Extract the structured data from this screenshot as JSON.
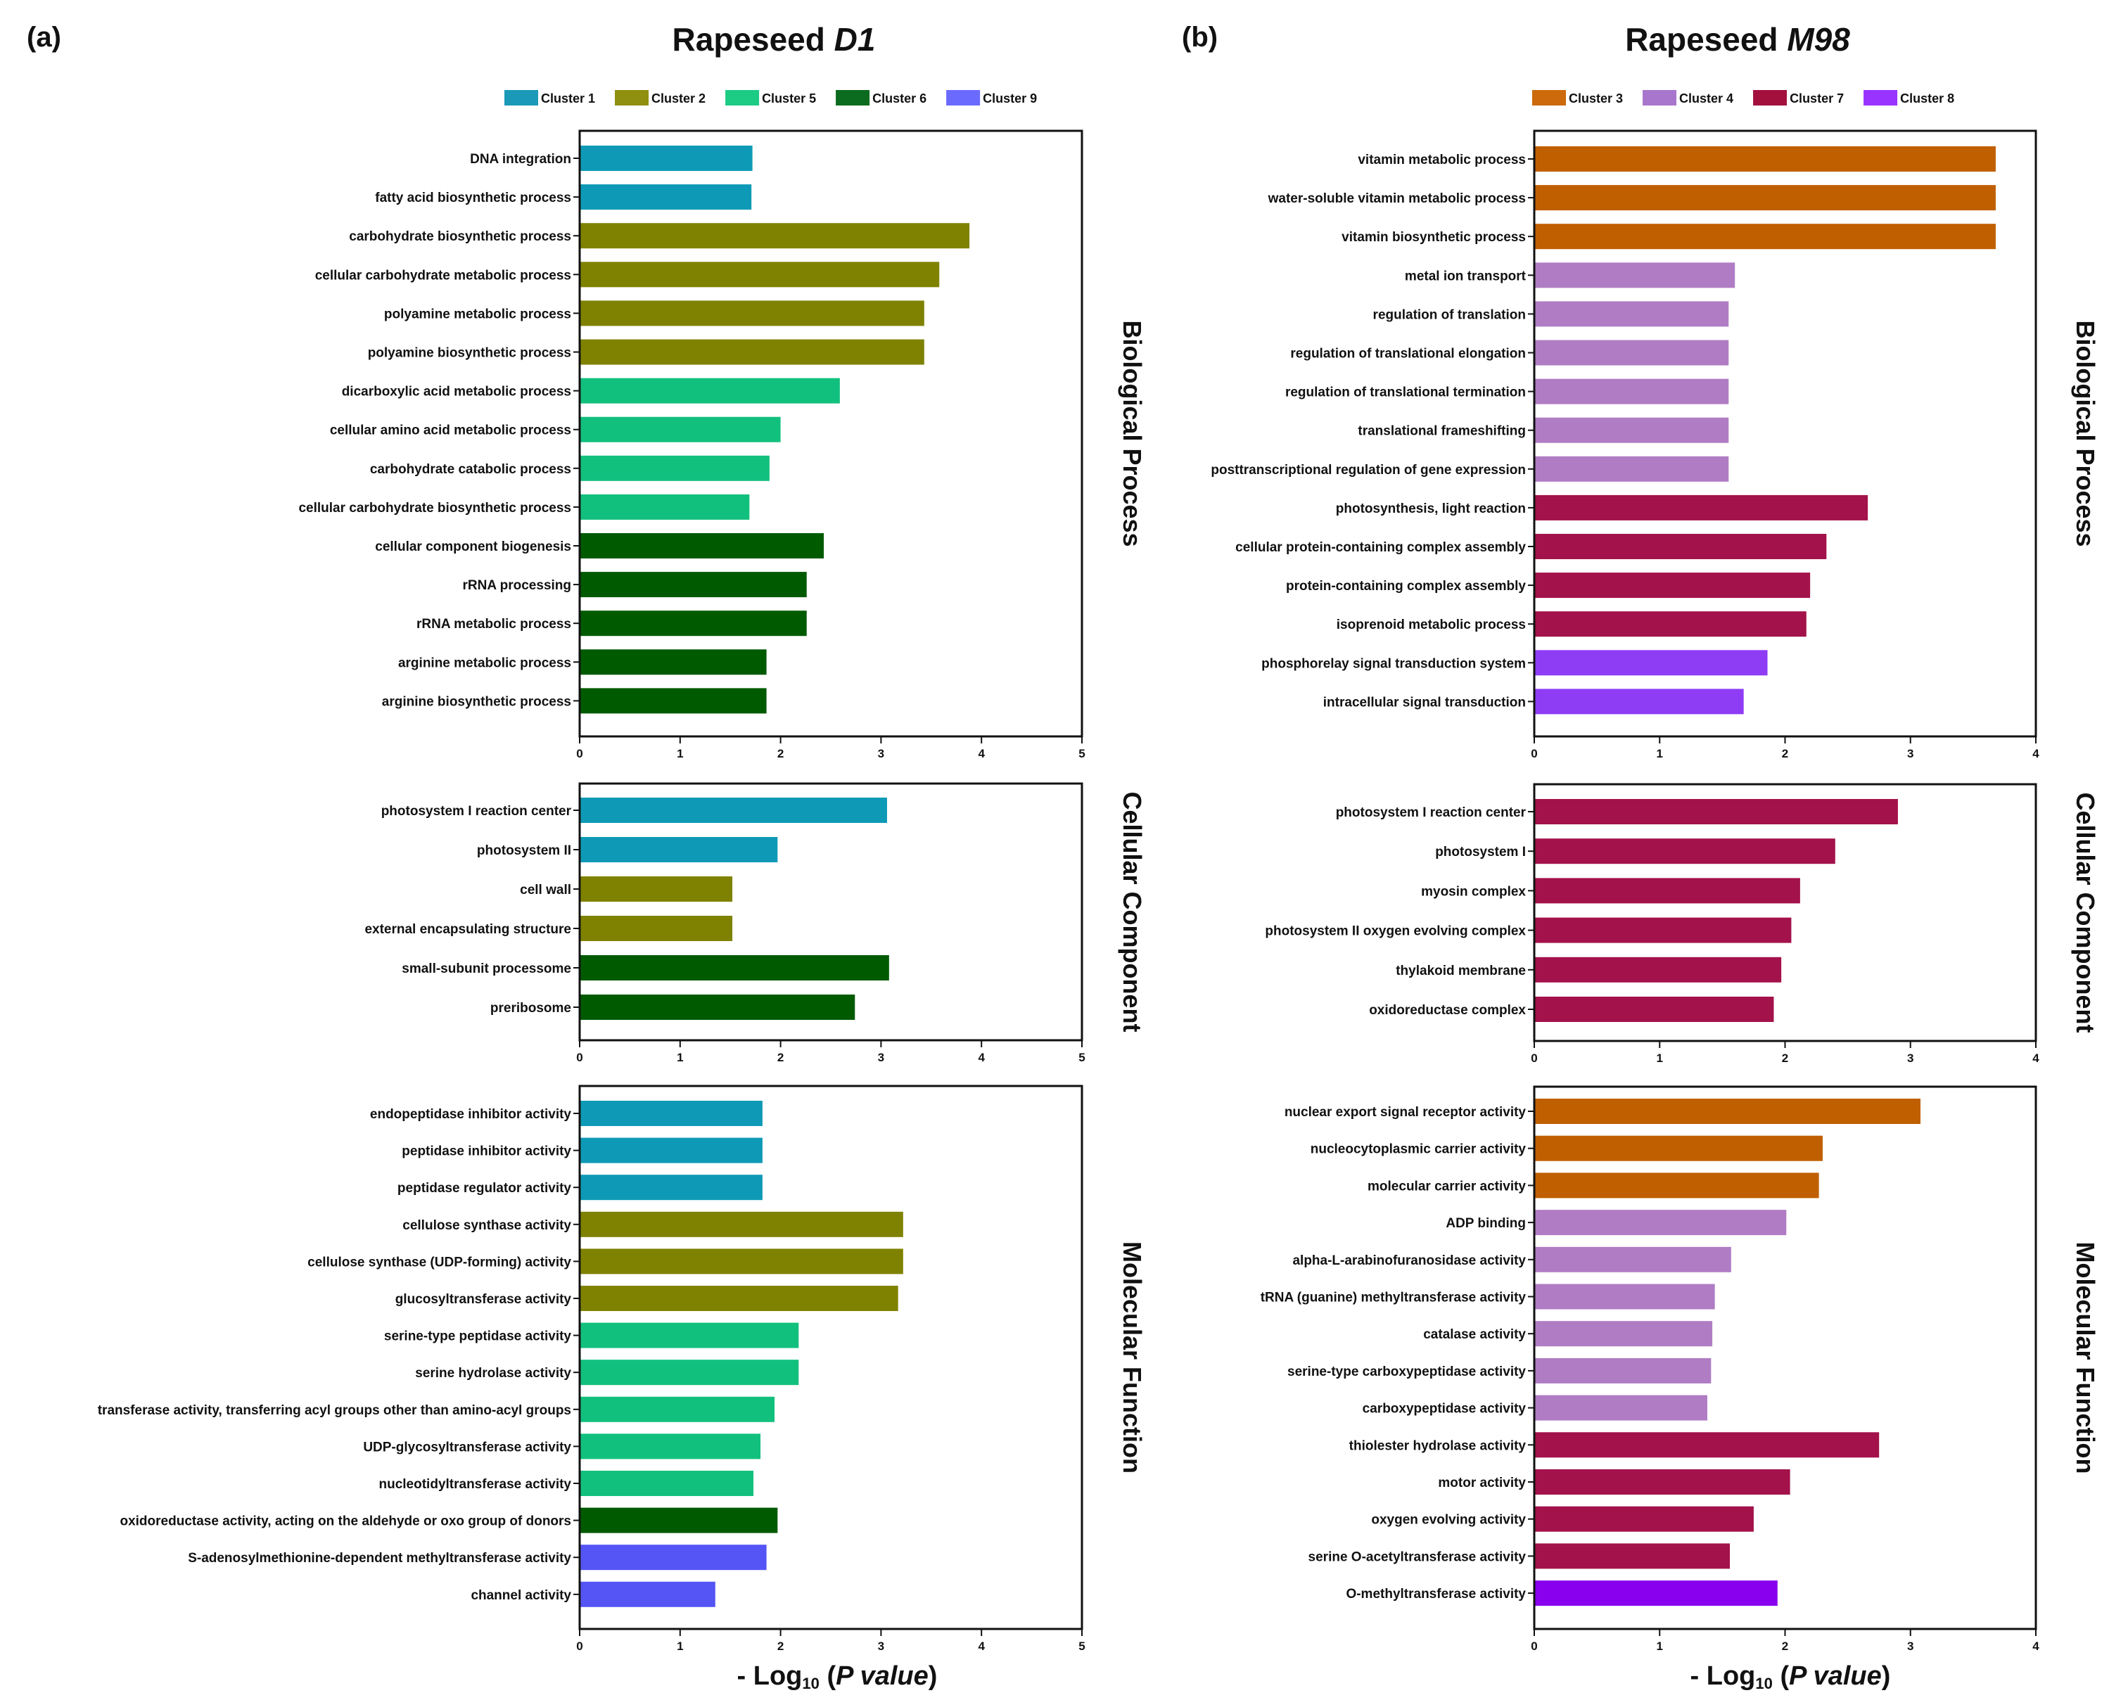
{
  "chart_data": {
    "type": "bar",
    "orientation": "horizontal",
    "xlabel": {
      "prefix": "- Log",
      "sub": "10",
      "paren_open": " (",
      "italic": "P value",
      "paren_close": ")"
    },
    "panels": [
      {
        "letter": "(a)",
        "title_text": "Rapeseed ",
        "title_italic": "D1",
        "legend": [
          {
            "name": "Cluster 1",
            "color": "#1a9ab8"
          },
          {
            "name": "Cluster 2",
            "color": "#8f8f10"
          },
          {
            "name": "Cluster 5",
            "color": "#1ccb84"
          },
          {
            "name": "Cluster 6",
            "color": "#0b6b1e"
          },
          {
            "name": "Cluster 9",
            "color": "#6a6aff"
          }
        ],
        "subplots": [
          {
            "category": "Biological Process",
            "xlim": [
              0,
              5
            ],
            "xticks": [
              0,
              1,
              2,
              3,
              4,
              5
            ],
            "bars": [
              {
                "term": "DNA integration",
                "value": 1.72,
                "cluster": "Cluster 1",
                "color": "#0e9ab6"
              },
              {
                "term": "fatty acid biosynthetic process",
                "value": 1.71,
                "cluster": "Cluster 1",
                "color": "#0e9ab6"
              },
              {
                "term": "carbohydrate biosynthetic process",
                "value": 3.88,
                "cluster": "Cluster 2",
                "color": "#7f8200"
              },
              {
                "term": "cellular carbohydrate metabolic process",
                "value": 3.58,
                "cluster": "Cluster 2",
                "color": "#7f8200"
              },
              {
                "term": "polyamine metabolic process",
                "value": 3.43,
                "cluster": "Cluster 2",
                "color": "#7f8200"
              },
              {
                "term": "polyamine biosynthetic process",
                "value": 3.43,
                "cluster": "Cluster 2",
                "color": "#7f8200"
              },
              {
                "term": "dicarboxylic acid metabolic process",
                "value": 2.59,
                "cluster": "Cluster 5",
                "color": "#12c07e"
              },
              {
                "term": "cellular amino acid metabolic process",
                "value": 2.0,
                "cluster": "Cluster 5",
                "color": "#12c07e"
              },
              {
                "term": "carbohydrate catabolic process",
                "value": 1.89,
                "cluster": "Cluster 5",
                "color": "#12c07e"
              },
              {
                "term": "cellular carbohydrate biosynthetic process",
                "value": 1.69,
                "cluster": "Cluster 5",
                "color": "#12c07e"
              },
              {
                "term": "cellular component biogenesis",
                "value": 2.43,
                "cluster": "Cluster 6",
                "color": "#005a00"
              },
              {
                "term": "rRNA processing",
                "value": 2.26,
                "cluster": "Cluster 6",
                "color": "#005a00"
              },
              {
                "term": "rRNA metabolic process",
                "value": 2.26,
                "cluster": "Cluster 6",
                "color": "#005a00"
              },
              {
                "term": "arginine metabolic process",
                "value": 1.86,
                "cluster": "Cluster 6",
                "color": "#005a00"
              },
              {
                "term": "arginine biosynthetic process",
                "value": 1.86,
                "cluster": "Cluster 6",
                "color": "#005a00"
              }
            ]
          },
          {
            "category": "Cellular Component",
            "xlim": [
              0,
              5
            ],
            "xticks": [
              0,
              1,
              2,
              3,
              4,
              5
            ],
            "bars": [
              {
                "term": "photosystem I reaction center",
                "value": 3.06,
                "cluster": "Cluster 1",
                "color": "#0e9ab6"
              },
              {
                "term": "photosystem II",
                "value": 1.97,
                "cluster": "Cluster 1",
                "color": "#0e9ab6"
              },
              {
                "term": "cell wall",
                "value": 1.52,
                "cluster": "Cluster 2",
                "color": "#7f8200"
              },
              {
                "term": "external encapsulating structure",
                "value": 1.52,
                "cluster": "Cluster 2",
                "color": "#7f8200"
              },
              {
                "term": "small-subunit processome",
                "value": 3.08,
                "cluster": "Cluster 6",
                "color": "#005a00"
              },
              {
                "term": "preribosome",
                "value": 2.74,
                "cluster": "Cluster 6",
                "color": "#005a00"
              }
            ]
          },
          {
            "category": "Molecular Function",
            "xlim": [
              0,
              5
            ],
            "xticks": [
              0,
              1,
              2,
              3,
              4,
              5
            ],
            "bars": [
              {
                "term": "endopeptidase inhibitor activity",
                "value": 1.82,
                "cluster": "Cluster 1",
                "color": "#0e9ab6"
              },
              {
                "term": "peptidase inhibitor activity",
                "value": 1.82,
                "cluster": "Cluster 1",
                "color": "#0e9ab6"
              },
              {
                "term": "peptidase regulator activity",
                "value": 1.82,
                "cluster": "Cluster 1",
                "color": "#0e9ab6"
              },
              {
                "term": "cellulose synthase activity",
                "value": 3.22,
                "cluster": "Cluster 2",
                "color": "#7f8200"
              },
              {
                "term": "cellulose synthase (UDP-forming) activity",
                "value": 3.22,
                "cluster": "Cluster 2",
                "color": "#7f8200"
              },
              {
                "term": "glucosyltransferase activity",
                "value": 3.17,
                "cluster": "Cluster 2",
                "color": "#7f8200"
              },
              {
                "term": "serine-type peptidase activity",
                "value": 2.18,
                "cluster": "Cluster 5",
                "color": "#12c07e"
              },
              {
                "term": "serine hydrolase activity",
                "value": 2.18,
                "cluster": "Cluster 5",
                "color": "#12c07e"
              },
              {
                "term": "transferase activity, transferring acyl groups other than amino-acyl groups",
                "value": 1.94,
                "cluster": "Cluster 5",
                "color": "#12c07e"
              },
              {
                "term": "UDP-glycosyltransferase activity",
                "value": 1.8,
                "cluster": "Cluster 5",
                "color": "#12c07e"
              },
              {
                "term": "nucleotidyltransferase activity",
                "value": 1.73,
                "cluster": "Cluster 5",
                "color": "#12c07e"
              },
              {
                "term": "oxidoreductase activity, acting on the aldehyde or oxo group of donors",
                "value": 1.97,
                "cluster": "Cluster 6",
                "color": "#005a00"
              },
              {
                "term": "S-adenosylmethionine-dependent methyltransferase activity",
                "value": 1.86,
                "cluster": "Cluster 9",
                "color": "#5555f5"
              },
              {
                "term": "channel activity",
                "value": 1.35,
                "cluster": "Cluster 9",
                "color": "#5555f5"
              }
            ]
          }
        ]
      },
      {
        "letter": "(b)",
        "title_text": "Rapeseed ",
        "title_italic": "M98",
        "legend": [
          {
            "name": "Cluster 3",
            "color": "#cc6a0c"
          },
          {
            "name": "Cluster 4",
            "color": "#a876cc"
          },
          {
            "name": "Cluster 7",
            "color": "#a3103e"
          },
          {
            "name": "Cluster 8",
            "color": "#9933ff"
          }
        ],
        "subplots": [
          {
            "category": "Biological Process",
            "xlim": [
              0,
              4
            ],
            "xticks": [
              0,
              1,
              2,
              3,
              4
            ],
            "bars": [
              {
                "term": "vitamin metabolic process",
                "value": 3.68,
                "cluster": "Cluster 3",
                "color": "#c05f00"
              },
              {
                "term": "water-soluble vitamin metabolic process",
                "value": 3.68,
                "cluster": "Cluster 3",
                "color": "#c05f00"
              },
              {
                "term": "vitamin biosynthetic process",
                "value": 3.68,
                "cluster": "Cluster 3",
                "color": "#c05f00"
              },
              {
                "term": "metal ion transport",
                "value": 1.6,
                "cluster": "Cluster 4",
                "color": "#b07cc4"
              },
              {
                "term": "regulation of translation",
                "value": 1.55,
                "cluster": "Cluster 4",
                "color": "#b07cc4"
              },
              {
                "term": "regulation of translational elongation",
                "value": 1.55,
                "cluster": "Cluster 4",
                "color": "#b07cc4"
              },
              {
                "term": "regulation of translational termination",
                "value": 1.55,
                "cluster": "Cluster 4",
                "color": "#b07cc4"
              },
              {
                "term": "translational frameshifting",
                "value": 1.55,
                "cluster": "Cluster 4",
                "color": "#b07cc4"
              },
              {
                "term": "posttranscriptional regulation of gene expression",
                "value": 1.55,
                "cluster": "Cluster 4",
                "color": "#b07cc4"
              },
              {
                "term": "photosynthesis, light reaction",
                "value": 2.66,
                "cluster": "Cluster 7",
                "color": "#a3124a"
              },
              {
                "term": "cellular protein-containing complex assembly",
                "value": 2.33,
                "cluster": "Cluster 7",
                "color": "#a3124a"
              },
              {
                "term": "protein-containing complex assembly",
                "value": 2.2,
                "cluster": "Cluster 7",
                "color": "#a3124a"
              },
              {
                "term": "isoprenoid metabolic process",
                "value": 2.17,
                "cluster": "Cluster 7",
                "color": "#a3124a"
              },
              {
                "term": "phosphorelay signal transduction system",
                "value": 1.86,
                "cluster": "Cluster 8",
                "color": "#8f3cf5"
              },
              {
                "term": "intracellular signal transduction",
                "value": 1.67,
                "cluster": "Cluster 8",
                "color": "#8f3cf5"
              }
            ]
          },
          {
            "category": "Cellular Component",
            "xlim": [
              0,
              4
            ],
            "xticks": [
              0,
              1,
              2,
              3,
              4
            ],
            "bars": [
              {
                "term": "photosystem I reaction center",
                "value": 2.9,
                "cluster": "Cluster 7",
                "color": "#a3124a"
              },
              {
                "term": "photosystem I",
                "value": 2.4,
                "cluster": "Cluster 7",
                "color": "#a3124a"
              },
              {
                "term": "myosin complex",
                "value": 2.12,
                "cluster": "Cluster 7",
                "color": "#a3124a"
              },
              {
                "term": "photosystem II oxygen evolving complex",
                "value": 2.05,
                "cluster": "Cluster 7",
                "color": "#a3124a"
              },
              {
                "term": "thylakoid membrane",
                "value": 1.97,
                "cluster": "Cluster 7",
                "color": "#a3124a"
              },
              {
                "term": "oxidoreductase complex",
                "value": 1.91,
                "cluster": "Cluster 7",
                "color": "#a3124a"
              }
            ]
          },
          {
            "category": "Molecular Function",
            "xlim": [
              0,
              4
            ],
            "xticks": [
              0,
              1,
              2,
              3,
              4
            ],
            "bars": [
              {
                "term": "nuclear export signal receptor activity",
                "value": 3.08,
                "cluster": "Cluster 3",
                "color": "#c05f00"
              },
              {
                "term": "nucleocytoplasmic carrier activity",
                "value": 2.3,
                "cluster": "Cluster 3",
                "color": "#c05f00"
              },
              {
                "term": "molecular carrier activity",
                "value": 2.27,
                "cluster": "Cluster 3",
                "color": "#c05f00"
              },
              {
                "term": "ADP binding",
                "value": 2.01,
                "cluster": "Cluster 4",
                "color": "#b07cc4"
              },
              {
                "term": "alpha-L-arabinofuranosidase activity",
                "value": 1.57,
                "cluster": "Cluster 4",
                "color": "#b07cc4"
              },
              {
                "term": "tRNA (guanine) methyltransferase activity",
                "value": 1.44,
                "cluster": "Cluster 4",
                "color": "#b07cc4"
              },
              {
                "term": "catalase activity",
                "value": 1.42,
                "cluster": "Cluster 4",
                "color": "#b07cc4"
              },
              {
                "term": "serine-type carboxypeptidase activity",
                "value": 1.41,
                "cluster": "Cluster 4",
                "color": "#b07cc4"
              },
              {
                "term": "carboxypeptidase activity",
                "value": 1.38,
                "cluster": "Cluster 4",
                "color": "#b07cc4"
              },
              {
                "term": "thiolester hydrolase activity",
                "value": 2.75,
                "cluster": "Cluster 7",
                "color": "#a3124a"
              },
              {
                "term": "motor activity",
                "value": 2.04,
                "cluster": "Cluster 7",
                "color": "#a3124a"
              },
              {
                "term": "oxygen evolving activity",
                "value": 1.75,
                "cluster": "Cluster 7",
                "color": "#a3124a"
              },
              {
                "term": "serine O-acetyltransferase activity",
                "value": 1.56,
                "cluster": "Cluster 7",
                "color": "#a3124a"
              },
              {
                "term": "O-methyltransferase activity",
                "value": 1.94,
                "cluster": "Cluster 8",
                "color": "#8800ee"
              }
            ]
          }
        ]
      }
    ]
  }
}
